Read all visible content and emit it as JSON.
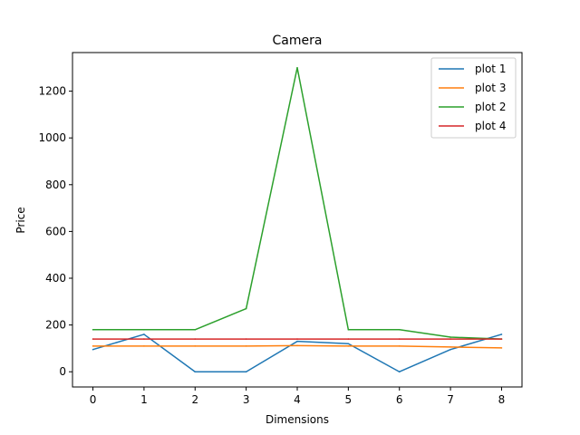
{
  "chart_data": {
    "type": "line",
    "title": "Camera",
    "xlabel": "Dimensions",
    "ylabel": "Price",
    "xlim": [
      -0.4,
      8.4
    ],
    "ylim": [
      -65,
      1365
    ],
    "xticks": [
      0,
      1,
      2,
      3,
      4,
      5,
      6,
      7,
      8
    ],
    "yticks": [
      0,
      200,
      400,
      600,
      800,
      1000,
      1200
    ],
    "grid": false,
    "legend_position": "top-right",
    "x": [
      0,
      1,
      2,
      3,
      4,
      5,
      6,
      7,
      8
    ],
    "series": [
      {
        "name": "plot 1",
        "color": "#1f77b4",
        "values": [
          95,
          160,
          0,
          0,
          130,
          120,
          0,
          95,
          160
        ]
      },
      {
        "name": "plot 3",
        "color": "#ff7f0e",
        "values": [
          110,
          110,
          110,
          110,
          112,
          110,
          110,
          106,
          102
        ]
      },
      {
        "name": "plot 2",
        "color": "#2ca02c",
        "values": [
          180,
          180,
          180,
          270,
          1300,
          180,
          180,
          148,
          140
        ]
      },
      {
        "name": "plot 4",
        "color": "#d62728",
        "values": [
          140,
          140,
          140,
          140,
          140,
          140,
          140,
          140,
          140
        ]
      }
    ]
  }
}
